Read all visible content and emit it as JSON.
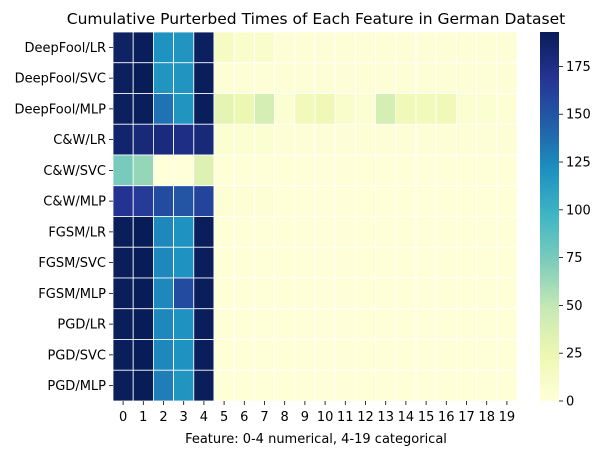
{
  "chart_data": {
    "type": "heatmap",
    "title": "Cumulative Purterbed Times of Each Feature in German Dataset",
    "xlabel": "Feature: 0-4 numerical, 4-19 categorical",
    "ylabel": "",
    "x_categories": [
      "0",
      "1",
      "2",
      "3",
      "4",
      "5",
      "6",
      "7",
      "8",
      "9",
      "10",
      "11",
      "12",
      "13",
      "14",
      "15",
      "16",
      "17",
      "18",
      "19"
    ],
    "y_categories": [
      "DeepFool/LR",
      "DeepFool/SVC",
      "DeepFool/MLP",
      "C&W/LR",
      "C&W/SVC",
      "C&W/MLP",
      "FGSM/LR",
      "FGSM/SVC",
      "FGSM/MLP",
      "PGD/LR",
      "PGD/SVC",
      "PGD/MLP"
    ],
    "values": [
      [
        188,
        192,
        120,
        118,
        190,
        14,
        8,
        8,
        2,
        3,
        2,
        2,
        2,
        3,
        2,
        2,
        2,
        2,
        2,
        2
      ],
      [
        190,
        193,
        118,
        118,
        192,
        2,
        2,
        2,
        2,
        2,
        2,
        2,
        2,
        2,
        2,
        2,
        2,
        2,
        2,
        2
      ],
      [
        190,
        192,
        135,
        118,
        192,
        30,
        25,
        40,
        5,
        18,
        22,
        8,
        5,
        40,
        20,
        18,
        20,
        5,
        5,
        3
      ],
      [
        185,
        180,
        178,
        175,
        180,
        5,
        5,
        5,
        2,
        2,
        2,
        2,
        2,
        2,
        2,
        2,
        2,
        2,
        2,
        2
      ],
      [
        75,
        65,
        0,
        0,
        35,
        1,
        1,
        1,
        1,
        1,
        1,
        1,
        1,
        1,
        1,
        1,
        1,
        1,
        1,
        1
      ],
      [
        170,
        165,
        155,
        150,
        160,
        3,
        3,
        3,
        1,
        1,
        1,
        1,
        1,
        1,
        1,
        1,
        1,
        1,
        1,
        1
      ],
      [
        192,
        193,
        125,
        120,
        192,
        1,
        1,
        1,
        1,
        1,
        1,
        1,
        1,
        1,
        1,
        1,
        1,
        1,
        1,
        1
      ],
      [
        192,
        193,
        125,
        120,
        192,
        1,
        1,
        1,
        1,
        1,
        1,
        1,
        1,
        1,
        1,
        1,
        1,
        1,
        1,
        1
      ],
      [
        192,
        193,
        125,
        155,
        192,
        1,
        1,
        1,
        1,
        1,
        1,
        1,
        1,
        1,
        1,
        1,
        1,
        1,
        1,
        1
      ],
      [
        192,
        193,
        125,
        120,
        192,
        1,
        1,
        1,
        1,
        1,
        1,
        1,
        1,
        1,
        1,
        1,
        1,
        1,
        1,
        1
      ],
      [
        192,
        193,
        125,
        120,
        192,
        1,
        1,
        1,
        1,
        1,
        1,
        1,
        1,
        1,
        1,
        1,
        1,
        1,
        1,
        1
      ],
      [
        192,
        193,
        130,
        118,
        192,
        1,
        1,
        1,
        1,
        1,
        1,
        1,
        1,
        1,
        1,
        1,
        1,
        1,
        1,
        1
      ]
    ],
    "colormap": "YlGnBu",
    "vmin": 0,
    "vmax": 193,
    "colorbar_ticks": [
      0,
      25,
      50,
      75,
      100,
      125,
      150,
      175
    ],
    "colorbar_tick_labels": [
      "0",
      "25",
      "50",
      "75",
      "100",
      "125",
      "150",
      "175"
    ],
    "grid": "white cell borders",
    "legend": "colorbar right"
  }
}
